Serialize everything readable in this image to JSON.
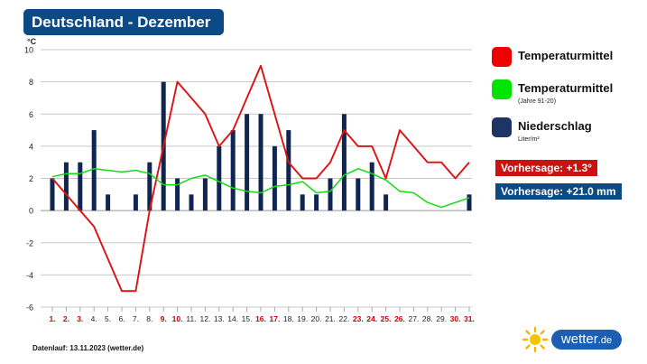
{
  "title": "Deutschland - Dezember",
  "legend": [
    {
      "label": "Temperaturmittel",
      "sub": "",
      "color": "#ee0000",
      "icon": "red-square"
    },
    {
      "label": "Temperaturmittel",
      "sub": "(Jahre 91-20)",
      "color": "#00e400",
      "icon": "green-square"
    },
    {
      "label": "Niederschlag",
      "sub": "Liter/m²",
      "color": "#1d3566",
      "icon": "navy-square"
    }
  ],
  "forecast_temperature": {
    "text": "Vorhersage: +1.3°",
    "color": "#cc1111"
  },
  "forecast_precipitation": {
    "text": "Vorhersage: +21.0 mm",
    "color": "#0c4a86"
  },
  "footer": "Datenlauf: 13.11.2023 (wetter.de)",
  "brand": {
    "name": "wetter",
    "tld": ".de",
    "icon": "sun-icon"
  },
  "chart_data": {
    "type": "bar",
    "unit": "°C",
    "ylim": [
      -6,
      10
    ],
    "yticks": [
      10,
      8,
      6,
      4,
      2,
      0,
      -2,
      -4,
      -6
    ],
    "grid": true,
    "x": [
      "1.",
      "2.",
      "3.",
      "4.",
      "5.",
      "6.",
      "7.",
      "8.",
      "9.",
      "10.",
      "11.",
      "12.",
      "13.",
      "14.",
      "15.",
      "16.",
      "17.",
      "18.",
      "19.",
      "20.",
      "21.",
      "22.",
      "23.",
      "24.",
      "25.",
      "26.",
      "27.",
      "28.",
      "29.",
      "30.",
      "31."
    ],
    "highlighted_days": [
      1,
      2,
      3,
      9,
      10,
      16,
      17,
      23,
      24,
      25,
      26,
      30,
      31
    ],
    "series": [
      {
        "name": "Temperaturmittel",
        "kind": "line",
        "color": "#dd1111",
        "values": [
          2,
          1,
          0,
          -1,
          -3,
          -5,
          -5,
          0,
          4,
          8,
          7,
          6,
          4,
          5,
          7,
          9,
          6,
          3,
          2,
          2,
          3,
          5,
          4,
          4,
          2,
          5,
          4,
          3,
          3,
          2,
          3
        ]
      },
      {
        "name": "Temperaturmittel (Jahre 91-20)",
        "kind": "line",
        "color": "#11dd11",
        "values": [
          2.1,
          2.3,
          2.3,
          2.6,
          2.5,
          2.4,
          2.5,
          2.3,
          1.6,
          1.6,
          2.0,
          2.2,
          1.8,
          1.4,
          1.2,
          1.1,
          1.5,
          1.6,
          1.8,
          1.1,
          1.2,
          2.2,
          2.6,
          2.3,
          1.9,
          1.2,
          1.1,
          0.5,
          0.2,
          0.5,
          0.8
        ]
      },
      {
        "name": "Niederschlag",
        "kind": "bar",
        "color": "#0f2652",
        "values": [
          2,
          3,
          3,
          5,
          1,
          null,
          1,
          3,
          8,
          2,
          1,
          2,
          4,
          5,
          6,
          6,
          4,
          5,
          1,
          1,
          2,
          6,
          2,
          3,
          1,
          null,
          null,
          null,
          null,
          null,
          1
        ]
      }
    ]
  }
}
